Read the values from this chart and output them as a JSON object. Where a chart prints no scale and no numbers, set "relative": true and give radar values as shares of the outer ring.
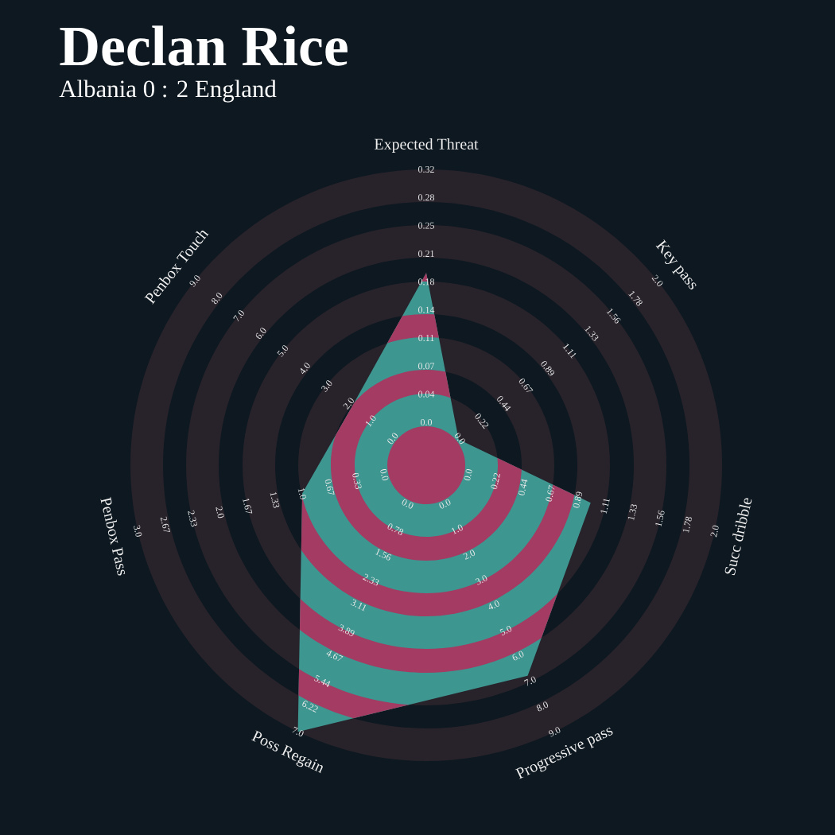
{
  "chart_data": {
    "type": "radar",
    "title": "Declan Rice",
    "subtitle": "Albania 0 : 2 England",
    "categories": [
      "Expected Threat",
      "Key pass",
      "Succ dribble",
      "Progressive pass",
      "Poss Regain",
      "Penbox Pass",
      "Penbox Touch"
    ],
    "relative": true,
    "series": [
      {
        "color": "#3e9690",
        "values": [
          0.65,
          0.14,
          0.57,
          0.79,
          1.0,
          0.43,
          0.32
        ]
      }
    ],
    "annotations": [
      "0.0",
      "0.04",
      "0.07",
      "0.11",
      "0.14",
      "0.18",
      "0.21",
      "0.25",
      "0.28",
      "0.32",
      "0.0",
      "0.22",
      "0.44",
      "0.67",
      "0.89",
      "1.11",
      "1.33",
      "1.56",
      "1.78",
      "2.0",
      "0.0",
      "0.22",
      "0.44",
      "0.67",
      "0.89",
      "1.11",
      "1.33",
      "1.56",
      "1.78",
      "2.0",
      "0.0",
      "1.0",
      "2.0",
      "3.0",
      "4.0",
      "5.0",
      "6.0",
      "7.0",
      "8.0",
      "9.0",
      "0.0",
      "0.78",
      "1.56",
      "2.33",
      "3.11",
      "3.89",
      "4.67",
      "5.44",
      "6.22",
      "7.0",
      "0.0",
      "0.33",
      "0.67",
      "1.0",
      "1.33",
      "1.67",
      "2.0",
      "2.33",
      "2.67",
      "3.0",
      "0.0",
      "1.0",
      "2.0",
      "3.0",
      "4.0",
      "5.0",
      "6.0",
      "7.0",
      "8.0",
      "9.0"
    ]
  }
}
